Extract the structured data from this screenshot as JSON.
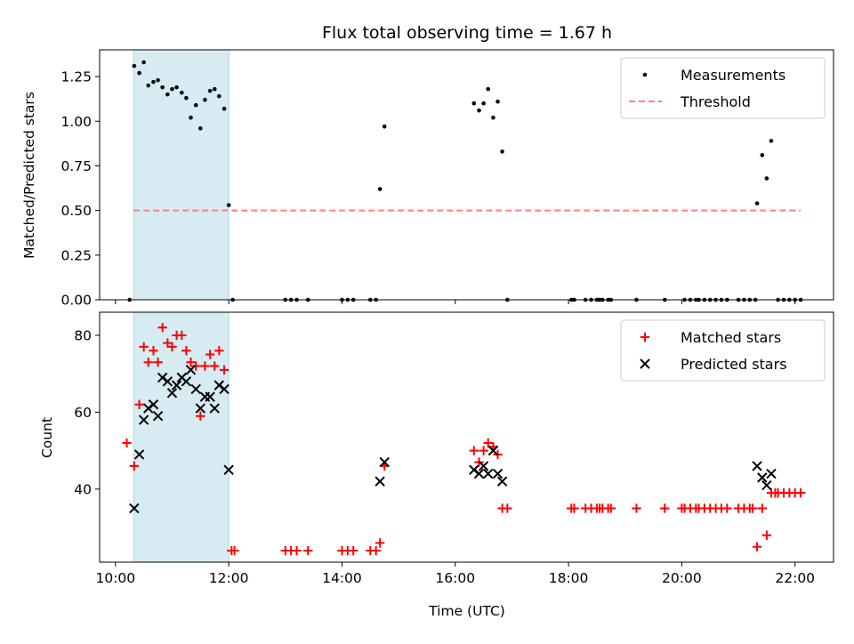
{
  "chart_data": {
    "title": "Flux total observing time = 1.67 h",
    "xlabel": "Time (UTC)",
    "x_tick_labels": [
      "10:00",
      "12:00",
      "14:00",
      "16:00",
      "18:00",
      "20:00",
      "22:00"
    ],
    "x_ticks_hours": [
      10,
      12,
      14,
      16,
      18,
      20,
      22
    ],
    "xlim_hours": [
      9.72,
      22.68
    ],
    "highlight_span_hours": [
      10.32,
      12.0
    ],
    "colors": {
      "measurement": "#000000",
      "threshold": "#ff7f7f",
      "matched": "#ff0000",
      "predicted": "#000000",
      "span": "#add8e6"
    },
    "panels": [
      {
        "type": "scatter",
        "ylabel": "Matched/Predicted stars",
        "ylim": [
          0,
          1.4
        ],
        "y_ticks": [
          0,
          0.25,
          0.5,
          0.75,
          1.0,
          1.25
        ],
        "y_tick_labels": [
          "0.00",
          "0.25",
          "0.50",
          "0.75",
          "1.00",
          "1.25"
        ],
        "legend_position": "upper-right",
        "legend": [
          "Measurements",
          "Threshold"
        ],
        "threshold": {
          "y": 0.5,
          "x_range_hours": [
            10.32,
            22.1
          ]
        },
        "measurements": [
          [
            10.33,
            1.31
          ],
          [
            10.42,
            1.27
          ],
          [
            10.5,
            1.33
          ],
          [
            10.58,
            1.2
          ],
          [
            10.67,
            1.22
          ],
          [
            10.75,
            1.23
          ],
          [
            10.83,
            1.19
          ],
          [
            10.92,
            1.15
          ],
          [
            11.0,
            1.18
          ],
          [
            11.08,
            1.19
          ],
          [
            11.17,
            1.16
          ],
          [
            11.25,
            1.13
          ],
          [
            11.33,
            1.02
          ],
          [
            11.42,
            1.09
          ],
          [
            11.5,
            0.96
          ],
          [
            11.58,
            1.12
          ],
          [
            11.67,
            1.17
          ],
          [
            11.75,
            1.18
          ],
          [
            11.83,
            1.14
          ],
          [
            11.92,
            1.07
          ],
          [
            12.0,
            0.53
          ],
          [
            10.25,
            0
          ],
          [
            12.07,
            0
          ],
          [
            13.0,
            0
          ],
          [
            13.1,
            0
          ],
          [
            13.2,
            0
          ],
          [
            13.4,
            0
          ],
          [
            14.0,
            0
          ],
          [
            14.1,
            0
          ],
          [
            14.2,
            0
          ],
          [
            14.5,
            0
          ],
          [
            14.6,
            0
          ],
          [
            14.67,
            0.62
          ],
          [
            14.75,
            0.97
          ],
          [
            16.33,
            1.1
          ],
          [
            16.42,
            1.06
          ],
          [
            16.5,
            1.1
          ],
          [
            16.58,
            1.18
          ],
          [
            16.67,
            1.02
          ],
          [
            16.75,
            1.11
          ],
          [
            16.83,
            0.83
          ],
          [
            16.92,
            0
          ],
          [
            18.05,
            0
          ],
          [
            18.1,
            0
          ],
          [
            18.3,
            0
          ],
          [
            18.4,
            0
          ],
          [
            18.5,
            0
          ],
          [
            18.55,
            0
          ],
          [
            18.6,
            0
          ],
          [
            18.7,
            0
          ],
          [
            18.75,
            0
          ],
          [
            19.2,
            0
          ],
          [
            19.7,
            0
          ],
          [
            20.05,
            0
          ],
          [
            20.15,
            0
          ],
          [
            20.25,
            0
          ],
          [
            20.3,
            0
          ],
          [
            20.4,
            0
          ],
          [
            20.5,
            0
          ],
          [
            20.6,
            0
          ],
          [
            20.7,
            0
          ],
          [
            20.8,
            0
          ],
          [
            21.0,
            0
          ],
          [
            21.1,
            0
          ],
          [
            21.2,
            0
          ],
          [
            21.3,
            0
          ],
          [
            21.33,
            0.54
          ],
          [
            21.42,
            0.81
          ],
          [
            21.5,
            0.68
          ],
          [
            21.58,
            0.89
          ],
          [
            21.7,
            0
          ],
          [
            21.8,
            0
          ],
          [
            21.9,
            0
          ],
          [
            22.0,
            0
          ],
          [
            22.1,
            0
          ]
        ]
      },
      {
        "type": "scatter",
        "ylabel": "Count",
        "ylim": [
          21,
          86
        ],
        "y_ticks": [
          40,
          60,
          80
        ],
        "y_tick_labels": [
          "40",
          "60",
          "80"
        ],
        "legend_position": "upper-right",
        "legend": [
          "Matched stars",
          "Predicted stars"
        ],
        "matched": [
          [
            10.2,
            52
          ],
          [
            10.33,
            46
          ],
          [
            10.42,
            62
          ],
          [
            10.5,
            77
          ],
          [
            10.58,
            73
          ],
          [
            10.67,
            76
          ],
          [
            10.75,
            73
          ],
          [
            10.83,
            82
          ],
          [
            10.92,
            78
          ],
          [
            11.0,
            77
          ],
          [
            11.08,
            80
          ],
          [
            11.17,
            80
          ],
          [
            11.25,
            76
          ],
          [
            11.33,
            73
          ],
          [
            11.42,
            72
          ],
          [
            11.5,
            59
          ],
          [
            11.58,
            72
          ],
          [
            11.67,
            75
          ],
          [
            11.75,
            72
          ],
          [
            11.83,
            76
          ],
          [
            11.92,
            71
          ],
          [
            12.05,
            24
          ],
          [
            12.1,
            24
          ],
          [
            13.0,
            24
          ],
          [
            13.1,
            24
          ],
          [
            13.2,
            24
          ],
          [
            13.4,
            24
          ],
          [
            14.0,
            24
          ],
          [
            14.1,
            24
          ],
          [
            14.2,
            24
          ],
          [
            14.5,
            24
          ],
          [
            14.6,
            24
          ],
          [
            14.67,
            26
          ],
          [
            14.75,
            46
          ],
          [
            16.33,
            50
          ],
          [
            16.42,
            47
          ],
          [
            16.5,
            50
          ],
          [
            16.58,
            52
          ],
          [
            16.67,
            51
          ],
          [
            16.75,
            49
          ],
          [
            16.83,
            35
          ],
          [
            16.92,
            35
          ],
          [
            18.05,
            35
          ],
          [
            18.1,
            35
          ],
          [
            18.3,
            35
          ],
          [
            18.4,
            35
          ],
          [
            18.5,
            35
          ],
          [
            18.55,
            35
          ],
          [
            18.6,
            35
          ],
          [
            18.7,
            35
          ],
          [
            18.75,
            35
          ],
          [
            19.2,
            35
          ],
          [
            19.7,
            35
          ],
          [
            20.0,
            35
          ],
          [
            20.05,
            35
          ],
          [
            20.15,
            35
          ],
          [
            20.25,
            35
          ],
          [
            20.3,
            35
          ],
          [
            20.4,
            35
          ],
          [
            20.5,
            35
          ],
          [
            20.6,
            35
          ],
          [
            20.7,
            35
          ],
          [
            20.8,
            35
          ],
          [
            21.0,
            35
          ],
          [
            21.1,
            35
          ],
          [
            21.2,
            35
          ],
          [
            21.25,
            35
          ],
          [
            21.33,
            25
          ],
          [
            21.42,
            35
          ],
          [
            21.5,
            28
          ],
          [
            21.58,
            39
          ],
          [
            21.65,
            39
          ],
          [
            21.7,
            39
          ],
          [
            21.8,
            39
          ],
          [
            21.9,
            39
          ],
          [
            22.0,
            39
          ],
          [
            22.1,
            39
          ]
        ],
        "predicted": [
          [
            10.33,
            35
          ],
          [
            10.42,
            49
          ],
          [
            10.5,
            58
          ],
          [
            10.58,
            61
          ],
          [
            10.67,
            62
          ],
          [
            10.75,
            59
          ],
          [
            10.83,
            69
          ],
          [
            10.92,
            68
          ],
          [
            11.0,
            65
          ],
          [
            11.08,
            67
          ],
          [
            11.17,
            69
          ],
          [
            11.25,
            68
          ],
          [
            11.33,
            71
          ],
          [
            11.42,
            66
          ],
          [
            11.5,
            61
          ],
          [
            11.58,
            64
          ],
          [
            11.67,
            64
          ],
          [
            11.75,
            61
          ],
          [
            11.83,
            67
          ],
          [
            11.92,
            66
          ],
          [
            12.0,
            45
          ],
          [
            14.67,
            42
          ],
          [
            14.75,
            47
          ],
          [
            16.33,
            45
          ],
          [
            16.42,
            44
          ],
          [
            16.5,
            46
          ],
          [
            16.58,
            44
          ],
          [
            16.67,
            50
          ],
          [
            16.75,
            44
          ],
          [
            16.83,
            42
          ],
          [
            21.33,
            46
          ],
          [
            21.42,
            43
          ],
          [
            21.5,
            41
          ],
          [
            21.58,
            44
          ]
        ]
      }
    ]
  }
}
